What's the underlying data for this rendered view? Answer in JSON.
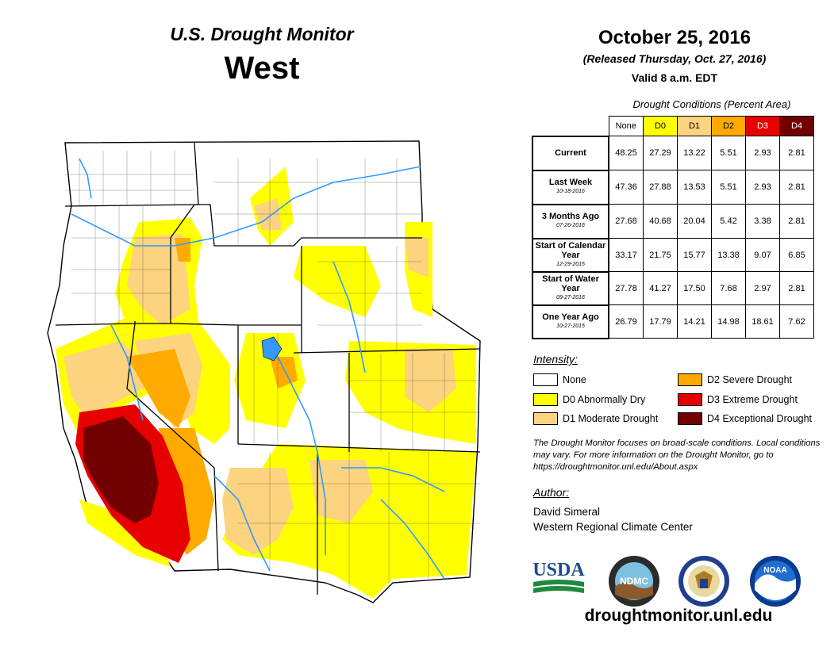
{
  "header": {
    "subtitle": "U.S. Drought Monitor",
    "region": "West",
    "date": "October 25, 2016",
    "released": "(Released Thursday, Oct. 27, 2016)",
    "valid": "Valid 8 a.m. EDT"
  },
  "table": {
    "caption": "Drought Conditions (Percent Area)",
    "columns": [
      "None",
      "D0",
      "D1",
      "D2",
      "D3",
      "D4"
    ],
    "column_colors": [
      "#ffffff",
      "#ffff00",
      "#fcd37f",
      "#ffaa00",
      "#e60000",
      "#730000"
    ],
    "rows": [
      {
        "label": "Current",
        "date": "",
        "values": [
          "48.25",
          "27.29",
          "13.22",
          "5.51",
          "2.93",
          "2.81"
        ]
      },
      {
        "label": "Last Week",
        "date": "10-18-2016",
        "values": [
          "47.36",
          "27.88",
          "13.53",
          "5.51",
          "2.93",
          "2.81"
        ]
      },
      {
        "label": "3 Months Ago",
        "date": "07-26-2016",
        "values": [
          "27.68",
          "40.68",
          "20.04",
          "5.42",
          "3.38",
          "2.81"
        ]
      },
      {
        "label": "Start of Calendar Year",
        "date": "12-29-2015",
        "values": [
          "33.17",
          "21.75",
          "15.77",
          "13.38",
          "9.07",
          "6.85"
        ]
      },
      {
        "label": "Start of Water Year",
        "date": "09-27-2016",
        "values": [
          "27.78",
          "41.27",
          "17.50",
          "7.68",
          "2.97",
          "2.81"
        ]
      },
      {
        "label": "One Year Ago",
        "date": "10-27-2015",
        "values": [
          "26.79",
          "17.79",
          "14.21",
          "14.98",
          "18.61",
          "7.62"
        ]
      }
    ]
  },
  "legend": {
    "title": "Intensity:",
    "items": [
      {
        "label": "None",
        "color": "#ffffff"
      },
      {
        "label": "D0 Abnormally Dry",
        "color": "#ffff00"
      },
      {
        "label": "D1 Moderate Drought",
        "color": "#fcd37f"
      },
      {
        "label": "D2 Severe Drought",
        "color": "#ffaa00"
      },
      {
        "label": "D3 Extreme Drought",
        "color": "#e60000"
      },
      {
        "label": "D4 Exceptional Drought",
        "color": "#730000"
      }
    ]
  },
  "note": "The Drought Monitor focuses on broad-scale conditions. Local conditions may vary. For more information on the Drought Monitor, go to https://droughtmonitor.unl.edu/About.aspx",
  "author": {
    "heading": "Author:",
    "name": "David Simeral",
    "org": "Western Regional Climate Center"
  },
  "logos": {
    "usda": "USDA",
    "ndmc": "NDMC",
    "noaa": "NOAA"
  },
  "url": "droughtmonitor.unl.edu",
  "map": {
    "region": "West",
    "states_colored": [
      "Washington",
      "Oregon",
      "California",
      "Nevada",
      "Idaho",
      "Montana",
      "Wyoming",
      "Utah",
      "Colorado",
      "Arizona",
      "New Mexico"
    ]
  }
}
